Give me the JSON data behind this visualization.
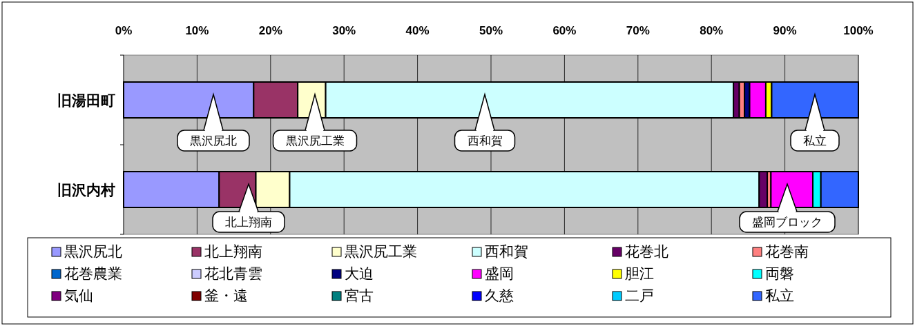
{
  "chart_data": {
    "type": "bar",
    "orientation": "horizontal",
    "stacked": true,
    "categories": [
      "旧湯田町",
      "旧沢内村"
    ],
    "xlim": [
      0,
      100
    ],
    "xticks": [
      {
        "value": 0,
        "label": "0%"
      },
      {
        "value": 10,
        "label": "10%"
      },
      {
        "value": 20,
        "label": "20%"
      },
      {
        "value": 30,
        "label": "30%"
      },
      {
        "value": 40,
        "label": "40%"
      },
      {
        "value": 50,
        "label": "50%"
      },
      {
        "value": 60,
        "label": "60%"
      },
      {
        "value": 70,
        "label": "70%"
      },
      {
        "value": 80,
        "label": "80%"
      },
      {
        "value": 90,
        "label": "90%"
      },
      {
        "value": 100,
        "label": "100%"
      }
    ],
    "grid": "x",
    "legend": "bottom",
    "series": [
      {
        "name": "黒沢尻北",
        "color": "#9999ff",
        "values": [
          17.7,
          13.0
        ]
      },
      {
        "name": "北上翔南",
        "color": "#993366",
        "values": [
          6.0,
          5.0
        ]
      },
      {
        "name": "黒沢尻工業",
        "color": "#ffffcc",
        "values": [
          3.8,
          4.6
        ]
      },
      {
        "name": "西和賀",
        "color": "#ccffff",
        "values": [
          55.5,
          63.9
        ]
      },
      {
        "name": "花巻北",
        "color": "#660066",
        "values": [
          0.8,
          1.1
        ]
      },
      {
        "name": "花巻南",
        "color": "#ff8080",
        "values": [
          0.7,
          0.5
        ]
      },
      {
        "name": "花巻農業",
        "color": "#0066cc",
        "values": [
          0,
          0
        ]
      },
      {
        "name": "花北青雲",
        "color": "#ccccff",
        "values": [
          0,
          0
        ]
      },
      {
        "name": "大迫",
        "color": "#000080",
        "values": [
          0.7,
          0
        ]
      },
      {
        "name": "盛岡",
        "color": "#ff00ff",
        "values": [
          2.2,
          5.7
        ]
      },
      {
        "name": "胆江",
        "color": "#ffff00",
        "values": [
          0.8,
          0
        ]
      },
      {
        "name": "両磐",
        "color": "#00ffff",
        "values": [
          0,
          1.1
        ]
      },
      {
        "name": "気仙",
        "color": "#800080",
        "values": [
          0,
          0
        ]
      },
      {
        "name": "釜・遠",
        "color": "#800000",
        "values": [
          0,
          0
        ]
      },
      {
        "name": "宮古",
        "color": "#008080",
        "values": [
          0,
          0
        ]
      },
      {
        "name": "久慈",
        "color": "#0000ff",
        "values": [
          0,
          0
        ]
      },
      {
        "name": "二戸",
        "color": "#00ccff",
        "values": [
          0,
          0
        ]
      },
      {
        "name": "私立",
        "color": "#3366ff",
        "values": [
          11.8,
          5.1
        ]
      }
    ],
    "annotations": [
      "黒沢尻北",
      "黒沢尻工業",
      "西和賀",
      "私立",
      "北上翔南",
      "盛岡ブロック"
    ]
  }
}
